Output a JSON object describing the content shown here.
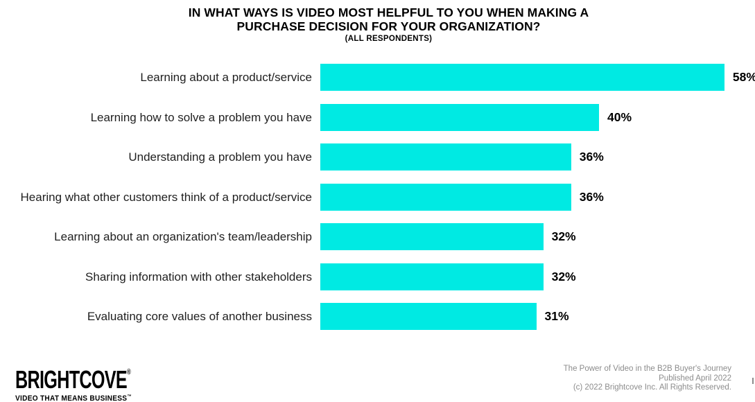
{
  "chart_data": {
    "type": "bar",
    "orientation": "horizontal",
    "title_lines": [
      "IN WHAT WAYS IS VIDEO MOST HELPFUL TO YOU WHEN MAKING A",
      "PURCHASE DECISION FOR YOUR ORGANIZATION?"
    ],
    "subtitle": "(ALL RESPONDENTS)",
    "categories": [
      "Learning about a product/service",
      "Learning how to solve a problem you have",
      "Understanding a problem you have",
      "Hearing what other customers think of a product/service",
      "Learning about an organization's team/leadership",
      "Sharing information with other stakeholders",
      "Evaluating core values of another business"
    ],
    "values": [
      58,
      40,
      36,
      36,
      32,
      32,
      31
    ],
    "value_suffix": "%",
    "value_labels": [
      "58%",
      "40%",
      "36%",
      "36%",
      "32%",
      "32%",
      "31%"
    ],
    "bar_color": "#00EAE3",
    "text_color": "#000000",
    "xlim": [
      0,
      60
    ],
    "axis_shown": false,
    "grid": false,
    "legend": false,
    "value_labels_position": "right-of-bar"
  },
  "footer": {
    "logo": {
      "text": "BRIGHTCOVE",
      "registered_mark": "®",
      "tagline": "VIDEO THAT MEANS BUSINESS",
      "trademark": "™"
    },
    "attribution": [
      "The Power of Video in the B2B Buyer's Journey",
      "Published April 2022",
      "(c) 2022 Brightcove Inc. All Rights Reserved."
    ]
  }
}
